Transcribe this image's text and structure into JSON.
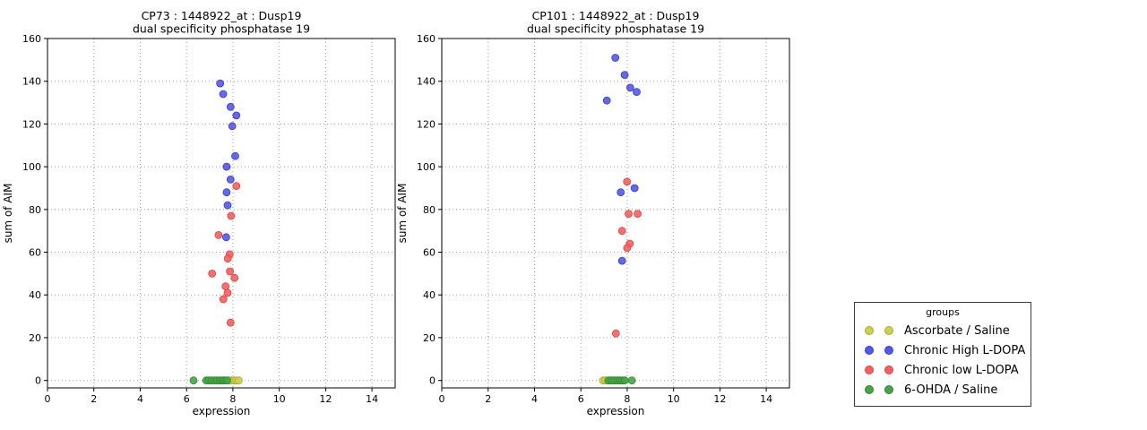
{
  "colors": {
    "yellow": {
      "fill": "#cfcf4e",
      "edge": "#a9a93a"
    },
    "blue": {
      "fill": "#5558e2",
      "edge": "#3a3dc9"
    },
    "red": {
      "fill": "#f55f5f",
      "edge": "#d84444"
    },
    "green": {
      "fill": "#47a347",
      "edge": "#2f8a2f"
    },
    "grid": "#9c9c9c",
    "axis": "#000000"
  },
  "legend": {
    "title": "groups",
    "position": "outside-right",
    "entries": [
      {
        "label": "Ascorbate / Saline",
        "color_key": "yellow"
      },
      {
        "label": "Chronic High L-DOPA",
        "color_key": "blue"
      },
      {
        "label": "Chronic low L-DOPA",
        "color_key": "red"
      },
      {
        "label": "6-OHDA / Saline",
        "color_key": "green"
      }
    ]
  },
  "chart_data": [
    {
      "type": "scatter",
      "title_line1": "CP73 : 1448922_at : Dusp19",
      "title_line2": "dual specificity phosphatase 19",
      "xlabel": "expression",
      "ylabel": "sum of AIM",
      "xlim": [
        0,
        15
      ],
      "ylim": [
        -3.5,
        160
      ],
      "xticks": [
        0,
        2,
        4,
        6,
        8,
        10,
        12,
        14
      ],
      "yticks": [
        0,
        20,
        40,
        60,
        80,
        100,
        120,
        140,
        160
      ],
      "grid": true,
      "series": [
        {
          "name": "Ascorbate / Saline",
          "color_key": "yellow",
          "points": [
            [
              7.35,
              0
            ],
            [
              7.48,
              0
            ],
            [
              7.6,
              0
            ],
            [
              7.72,
              0
            ],
            [
              7.85,
              0
            ],
            [
              7.95,
              0
            ],
            [
              8.05,
              0
            ],
            [
              8.15,
              0
            ],
            [
              8.25,
              0
            ]
          ]
        },
        {
          "name": "Chronic High L-DOPA",
          "color_key": "blue",
          "points": [
            [
              7.45,
              139
            ],
            [
              7.58,
              134
            ],
            [
              7.9,
              128
            ],
            [
              8.15,
              124
            ],
            [
              7.97,
              119
            ],
            [
              8.1,
              105
            ],
            [
              7.73,
              100
            ],
            [
              7.9,
              94
            ],
            [
              7.73,
              88
            ],
            [
              7.77,
              82
            ],
            [
              7.71,
              67
            ]
          ]
        },
        {
          "name": "Chronic low L-DOPA",
          "color_key": "red",
          "points": [
            [
              8.15,
              91
            ],
            [
              7.92,
              77
            ],
            [
              7.38,
              68
            ],
            [
              7.86,
              59
            ],
            [
              7.78,
              57
            ],
            [
              7.87,
              51
            ],
            [
              7.1,
              50
            ],
            [
              8.07,
              48
            ],
            [
              7.68,
              44
            ],
            [
              7.77,
              41
            ],
            [
              7.59,
              38
            ],
            [
              7.9,
              27
            ]
          ]
        },
        {
          "name": "6-OHDA / Saline",
          "color_key": "green",
          "points": [
            [
              6.3,
              0
            ],
            [
              6.85,
              0
            ],
            [
              6.95,
              0
            ],
            [
              7.08,
              0
            ],
            [
              7.2,
              0
            ],
            [
              7.32,
              0
            ],
            [
              7.45,
              0
            ],
            [
              7.55,
              0
            ],
            [
              7.65,
              0
            ],
            [
              7.75,
              0
            ]
          ]
        }
      ]
    },
    {
      "type": "scatter",
      "title_line1": "CP101 : 1448922_at : Dusp19",
      "title_line2": "dual specificity phosphatase 19",
      "xlabel": "expression",
      "ylabel": "sum of AIM",
      "xlim": [
        0,
        15
      ],
      "ylim": [
        -3.5,
        160
      ],
      "xticks": [
        0,
        2,
        4,
        6,
        8,
        10,
        12,
        14
      ],
      "yticks": [
        0,
        20,
        40,
        60,
        80,
        100,
        120,
        140,
        160
      ],
      "grid": true,
      "series": [
        {
          "name": "Ascorbate / Saline",
          "color_key": "yellow",
          "points": [
            [
              6.95,
              0
            ],
            [
              7.05,
              0
            ],
            [
              7.15,
              0
            ],
            [
              7.28,
              0
            ],
            [
              7.4,
              0
            ],
            [
              7.52,
              0
            ],
            [
              7.62,
              0
            ]
          ]
        },
        {
          "name": "Chronic High L-DOPA",
          "color_key": "blue",
          "points": [
            [
              7.49,
              151
            ],
            [
              7.89,
              143
            ],
            [
              8.13,
              137
            ],
            [
              8.41,
              135
            ],
            [
              7.12,
              131
            ],
            [
              8.32,
              90
            ],
            [
              7.72,
              88
            ],
            [
              7.78,
              56
            ]
          ]
        },
        {
          "name": "Chronic low L-DOPA",
          "color_key": "red",
          "points": [
            [
              7.99,
              93
            ],
            [
              8.06,
              78
            ],
            [
              8.45,
              78
            ],
            [
              7.78,
              70
            ],
            [
              8.11,
              64
            ],
            [
              8.0,
              62
            ],
            [
              7.51,
              22
            ]
          ]
        },
        {
          "name": "6-OHDA / Saline",
          "color_key": "green",
          "points": [
            [
              7.2,
              0
            ],
            [
              7.32,
              0
            ],
            [
              7.45,
              0
            ],
            [
              7.58,
              0
            ],
            [
              7.7,
              0
            ],
            [
              7.8,
              0
            ],
            [
              7.9,
              0
            ],
            [
              8.2,
              0
            ]
          ]
        }
      ]
    }
  ]
}
